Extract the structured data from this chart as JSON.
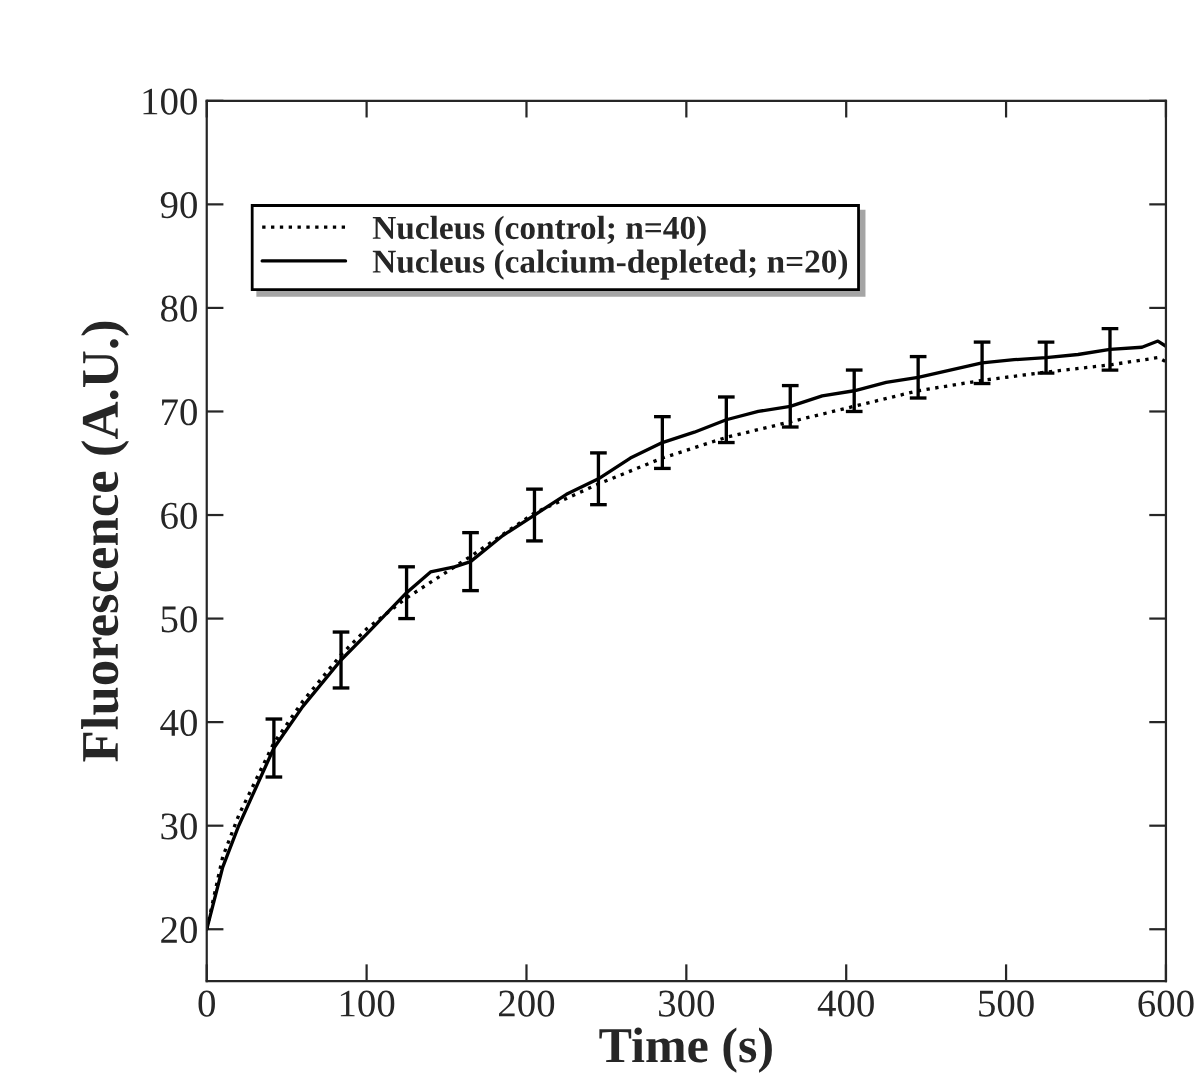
{
  "chart_data": {
    "type": "line",
    "xlabel": "Time (s)",
    "ylabel": "Fluorescence (A.U.)",
    "xlim": [
      0,
      600
    ],
    "xticks": [
      0,
      100,
      200,
      300,
      400,
      500,
      600
    ],
    "ylim": [
      15,
      100
    ],
    "yticks": [
      20,
      30,
      40,
      50,
      60,
      70,
      80,
      90,
      100
    ],
    "grid": false,
    "legend": "top left",
    "marker": "none",
    "series": [
      {
        "name": "Nucleus (control; n=40)",
        "color": "#000000",
        "line_style": "dotted",
        "x": [
          0,
          10,
          20,
          42,
          60,
          84,
          100,
          125,
          165,
          205,
          245,
          285,
          325,
          365,
          405,
          445,
          485,
          525,
          565,
          595,
          600
        ],
        "values": [
          20,
          27,
          31,
          38,
          42,
          46.5,
          49,
          52,
          56,
          60.2,
          63,
          65.5,
          67.5,
          69,
          70.5,
          72,
          73,
          73.8,
          74.5,
          75.2,
          74.8
        ]
      },
      {
        "name": "Nucleus (calcium-depleted; n=20)",
        "color": "#000000",
        "line_style": "solid",
        "x": [
          0,
          10,
          20,
          42,
          60,
          84,
          100,
          125,
          140,
          155,
          165,
          185,
          205,
          225,
          245,
          265,
          285,
          305,
          325,
          345,
          365,
          385,
          405,
          425,
          445,
          465,
          485,
          505,
          525,
          545,
          565,
          585,
          595,
          600
        ],
        "values": [
          20,
          26,
          30,
          37.5,
          41.5,
          46,
          48.5,
          52.5,
          54.5,
          55,
          55.5,
          58,
          60,
          62,
          63.5,
          65.5,
          67,
          68,
          69.2,
          70,
          70.5,
          71.5,
          72,
          72.8,
          73.3,
          74,
          74.7,
          75,
          75.2,
          75.5,
          76,
          76.2,
          76.8,
          76.3
        ],
        "errors": [
          null,
          null,
          null,
          2.8,
          null,
          2.7,
          null,
          2.5,
          null,
          null,
          2.8,
          null,
          2.5,
          null,
          2.5,
          null,
          2.5,
          null,
          2.2,
          null,
          2,
          null,
          2,
          null,
          2,
          null,
          2,
          null,
          1.5,
          null,
          2,
          null,
          null,
          null
        ]
      }
    ]
  }
}
